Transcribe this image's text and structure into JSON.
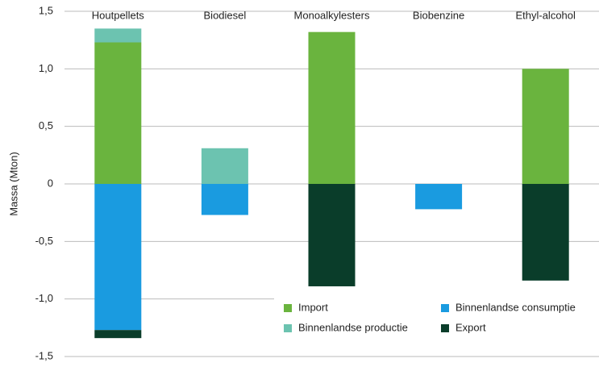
{
  "chart_data": {
    "type": "bar",
    "stacked": true,
    "y_label": "Massa (Mton)",
    "categories": [
      "Houtpellets",
      "Biodiesel",
      "Monoalkylesters",
      "Biobenzine",
      "Ethyl-alcohol"
    ],
    "series": [
      {
        "name": "Import",
        "color": "#6ab43e",
        "values": [
          1.23,
          0,
          1.32,
          0,
          1.0
        ]
      },
      {
        "name": "Binnenlandse productie",
        "color": "#6cc3b0",
        "values": [
          0.12,
          0.31,
          0,
          0,
          0
        ]
      },
      {
        "name": "Binnenlandse consumptie",
        "color": "#1a9be0",
        "values": [
          -1.27,
          -0.27,
          0,
          -0.22,
          0
        ]
      },
      {
        "name": "Export",
        "color": "#0a3d2a",
        "values": [
          -0.07,
          0,
          -0.89,
          0,
          -0.84
        ]
      }
    ],
    "ylim": [
      -1.5,
      1.5
    ],
    "yticks": [
      {
        "value": -1.5,
        "label": "-1,5"
      },
      {
        "value": -1.0,
        "label": "-1,0"
      },
      {
        "value": -0.5,
        "label": "-0,5"
      },
      0,
      {
        "value": 0.5,
        "label": "0,5"
      },
      {
        "value": 1.0,
        "label": "1,0"
      },
      {
        "value": 1.5,
        "label": "1,5"
      }
    ],
    "grid": true
  }
}
